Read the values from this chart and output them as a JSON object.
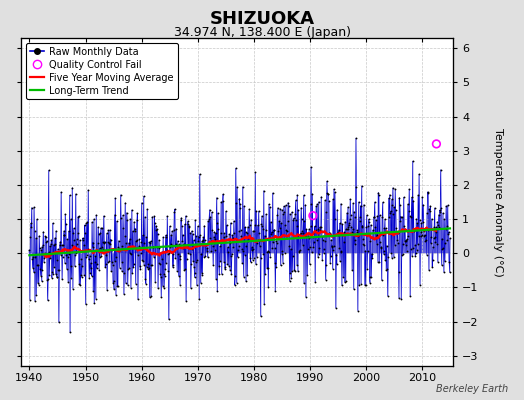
{
  "title": "SHIZUOKA",
  "subtitle": "34.974 N, 138.400 E (Japan)",
  "ylabel": "Temperature Anomaly (°C)",
  "credit": "Berkeley Earth",
  "year_start": 1940,
  "year_end": 2014,
  "ylim": [
    -3.3,
    6.3
  ],
  "yticks": [
    -3,
    -2,
    -1,
    0,
    1,
    2,
    3,
    4,
    5,
    6
  ],
  "xticks": [
    1940,
    1950,
    1960,
    1970,
    1980,
    1990,
    2000,
    2010
  ],
  "bg_color": "#e0e0e0",
  "plot_bg": "#ffffff",
  "line_color": "#0000cc",
  "marker_color": "#000000",
  "ma_color": "#ff0000",
  "trend_color": "#00bb00",
  "qc_color": "#ff00ff",
  "title_fontsize": 13,
  "subtitle_fontsize": 9,
  "grid_color": "#c8c8c8"
}
